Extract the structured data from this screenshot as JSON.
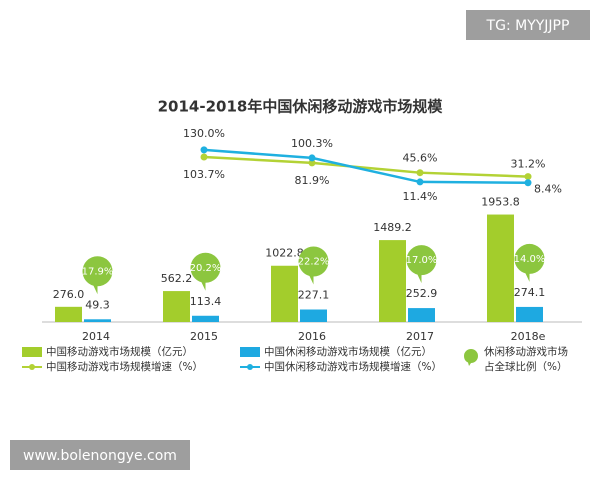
{
  "chart_data": {
    "type": "bar-line",
    "title": "2014-2018年中国休闲移动游戏市场规模",
    "categories": [
      "2014",
      "2015",
      "2016",
      "2017",
      "2018e"
    ],
    "series": [
      {
        "name": "中国移动游戏市场规模（亿元）",
        "kind": "bar",
        "color": "#a3cd2c",
        "values": [
          276.0,
          562.2,
          1022.8,
          1489.2,
          1953.8
        ],
        "value_labels": [
          "276.0",
          "562.2",
          "1022.8",
          "1489.2",
          "1953.8"
        ]
      },
      {
        "name": "中国休闲移动游戏市场规模（亿元）",
        "kind": "bar",
        "color": "#1ea9e1",
        "values": [
          49.3,
          113.4,
          227.1,
          252.9,
          274.1
        ]
      },
      {
        "name": "中国移动游戏市场规模增速（%）",
        "kind": "line",
        "color": "#b3d235",
        "values": [
          null,
          103.7,
          81.9,
          45.6,
          31.2
        ],
        "value_labels": [
          null,
          "103.7%",
          "81.9%",
          "45.6%",
          "31.2%"
        ]
      },
      {
        "name": "中国休闲移动游戏市场规模增速（%）",
        "kind": "line",
        "color": "#1fb0e0",
        "values": [
          null,
          130.0,
          100.3,
          11.4,
          8.4
        ],
        "value_labels": [
          null,
          "130.0%",
          "100.3%",
          "11.4%",
          "8.4%"
        ]
      },
      {
        "name": [
          "休闲移动游戏市场",
          "占全球比例（%）"
        ],
        "kind": "bubble",
        "color": "#8cc63f",
        "values": [
          17.9,
          20.2,
          22.2,
          17.0,
          14.0
        ],
        "value_labels": [
          "17.9%",
          "20.2%",
          "22.2%",
          "17.0%",
          "14.0%"
        ]
      }
    ]
  },
  "watermarks": [
    "TG: MYYJJPP",
    "www.bolenongye.com"
  ]
}
